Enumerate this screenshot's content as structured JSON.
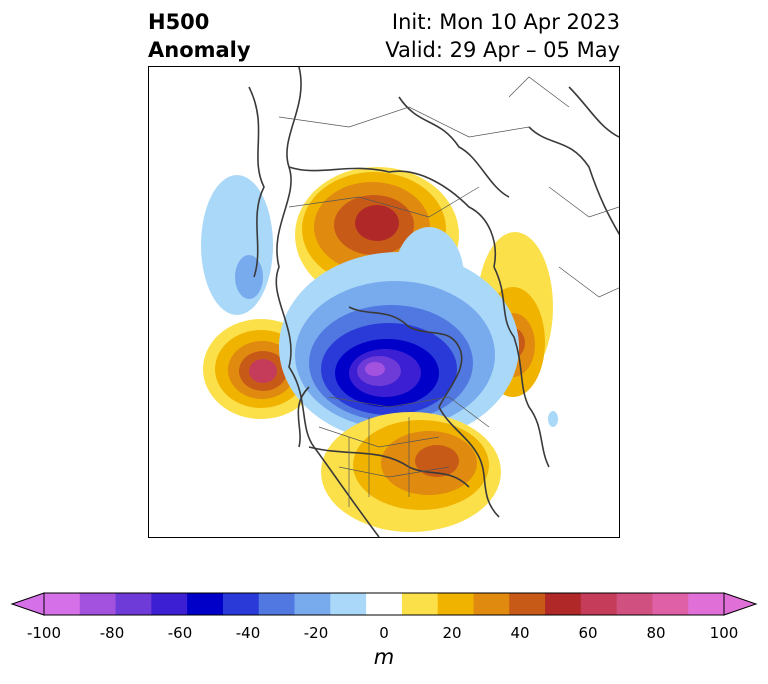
{
  "title": {
    "left_line1": "H500",
    "left_line2": "Anomaly",
    "right_line1": "Init: Mon 10 Apr 2023",
    "right_line2": "Valid: 29 Apr – 05 May"
  },
  "map": {
    "projection": "north polar stereographic",
    "field": "500 hPa geopotential height anomaly",
    "anomaly_centers": [
      {
        "region": "Northern Siberia / Arctic",
        "sign": "positive",
        "max_m": 65
      },
      {
        "region": "North Pacific (Gulf of Alaska)",
        "sign": "positive",
        "max_m": 70
      },
      {
        "region": "Hudson Bay / Canada",
        "sign": "negative",
        "min_m": -90
      },
      {
        "region": "Eastern United States",
        "sign": "positive",
        "max_m": 50
      },
      {
        "region": "North Atlantic / Greenland Sea",
        "sign": "positive",
        "max_m": 45
      },
      {
        "region": "Bering Sea / East Asia",
        "sign": "negative",
        "min_m": -25
      }
    ]
  },
  "colorbar": {
    "label": "m",
    "ticks": [
      "-100",
      "-80",
      "-60",
      "-40",
      "-20",
      "0",
      "20",
      "40",
      "60",
      "80",
      "100"
    ],
    "levels": [
      -100,
      -90,
      -80,
      -70,
      -60,
      -50,
      -40,
      -30,
      -20,
      -10,
      10,
      20,
      30,
      40,
      50,
      60,
      70,
      80,
      90,
      100
    ],
    "colors": [
      "#d670e8",
      "#a352e0",
      "#6e3ad8",
      "#3c1fd2",
      "#0000c8",
      "#2a3ad8",
      "#5078e0",
      "#78aaee",
      "#aad8f8",
      "#ffffff",
      "#fce04a",
      "#f0b400",
      "#e08a10",
      "#c85a18",
      "#b02828",
      "#c43c5a",
      "#d05080",
      "#e060a8",
      "#e070d8"
    ],
    "extend_low": "#d670e8",
    "extend_high": "#e070d8"
  }
}
